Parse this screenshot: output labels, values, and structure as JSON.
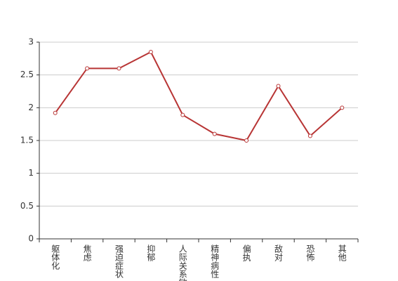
{
  "chart_data": {
    "type": "line",
    "categories": [
      "躯体化",
      "焦虑",
      "强迫症状",
      "抑郁",
      "人际关系敏感",
      "精神病性",
      "偏执",
      "敌对",
      "恐怖",
      "其他"
    ],
    "values": [
      1.92,
      2.6,
      2.6,
      2.85,
      1.89,
      1.6,
      1.5,
      2.33,
      1.57,
      2.0
    ],
    "color": "#b83535",
    "ylim": [
      0,
      3
    ],
    "yticks": [
      0,
      0.5,
      1,
      1.5,
      2,
      2.5,
      3
    ],
    "grid": true
  }
}
